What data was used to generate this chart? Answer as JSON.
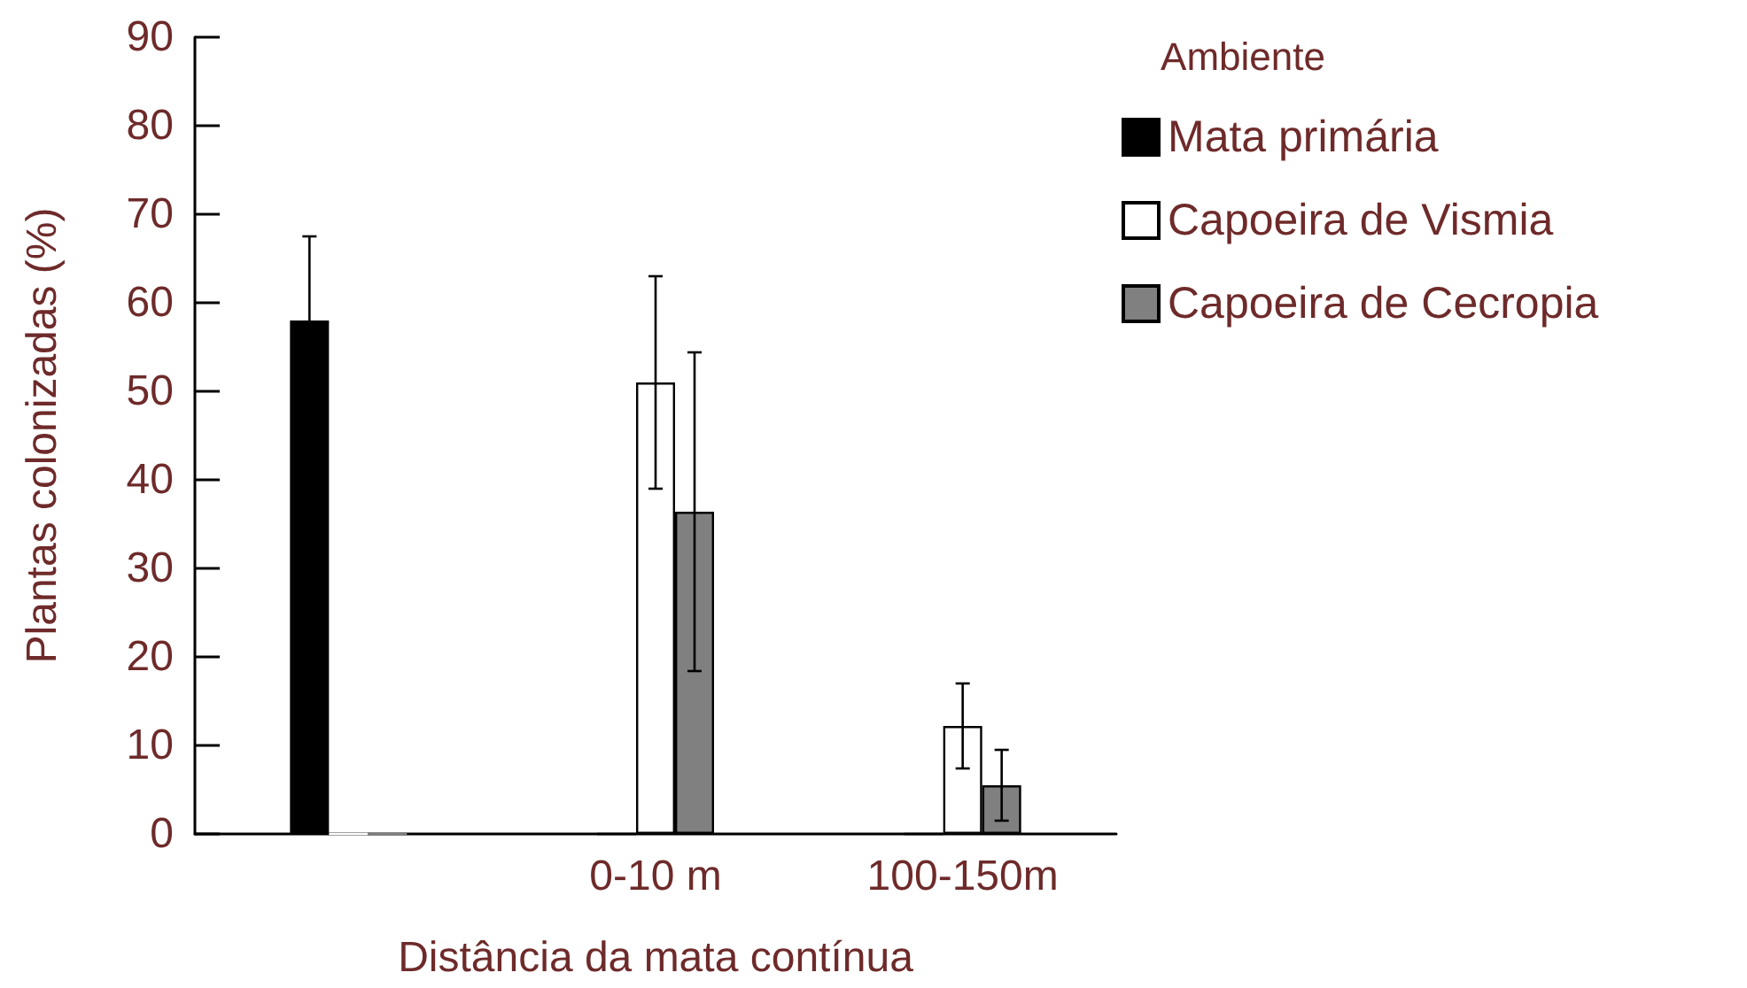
{
  "chart_data": {
    "type": "bar",
    "xlabel": "Distância da mata contínua",
    "ylabel": "Plantas colonizadas (%)",
    "legend_title": "Ambiente",
    "categories": [
      null,
      "0-10 m",
      "100-150m"
    ],
    "series": [
      {
        "name": "Mata primária",
        "color": "#000000",
        "values": [
          58,
          0,
          0
        ],
        "errors": [
          9.5,
          null,
          null
        ]
      },
      {
        "name": "Capoeira de Vismia",
        "color": "#ffffff",
        "values": [
          0,
          51,
          12.2
        ],
        "errors": [
          null,
          12,
          4.8
        ]
      },
      {
        "name": "Capoeira de Cecropia",
        "color": "#808080",
        "values": [
          0,
          36.4,
          5.5
        ],
        "errors": [
          null,
          18,
          4
        ]
      }
    ],
    "ylim": [
      0,
      90
    ],
    "yticks": [
      0,
      10,
      20,
      30,
      40,
      50,
      60,
      70,
      80,
      90
    ],
    "grid": false,
    "legend": "right"
  }
}
